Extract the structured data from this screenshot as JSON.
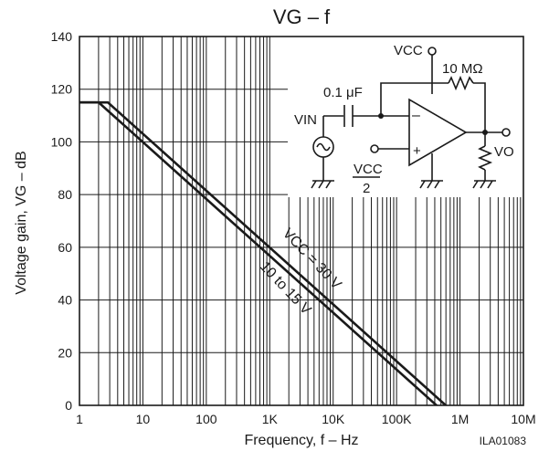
{
  "chart_data": {
    "type": "line",
    "title": "VG – f",
    "xlabel": "Frequency, f – Hz",
    "ylabel": "Voltage gain, VG – dB",
    "x_scale": "log",
    "xlim": [
      1,
      10000000
    ],
    "ylim": [
      0,
      140
    ],
    "grid": true,
    "x_ticks": [
      1,
      10,
      100,
      1000,
      10000,
      100000,
      1000000,
      10000000
    ],
    "x_tick_labels": [
      "1",
      "10",
      "100",
      "1K",
      "10K",
      "100K",
      "1M",
      "10M"
    ],
    "y_ticks": [
      0,
      20,
      40,
      60,
      80,
      100,
      120,
      140
    ],
    "y_tick_labels": [
      "0",
      "20",
      "40",
      "60",
      "80",
      "100",
      "120",
      "140"
    ],
    "series": [
      {
        "name": "VCC = 30 V",
        "x": [
          1,
          2.8,
          700000
        ],
        "y": [
          115,
          115,
          -1.5
        ]
      },
      {
        "name": "10 to 15 V",
        "x": [
          1,
          2,
          500000
        ],
        "y": [
          115,
          115,
          -1.5
        ]
      }
    ],
    "figure_code": "ILA01083"
  },
  "inset": {
    "vcc": "VCC",
    "feedback_resistor": "10 MΩ",
    "input_cap": "0.1 μF",
    "vin": "VIN",
    "vout": "VO",
    "bias_numerator": "VCC",
    "bias_denominator": "2",
    "minus_sign": "–",
    "plus_sign": "+"
  }
}
